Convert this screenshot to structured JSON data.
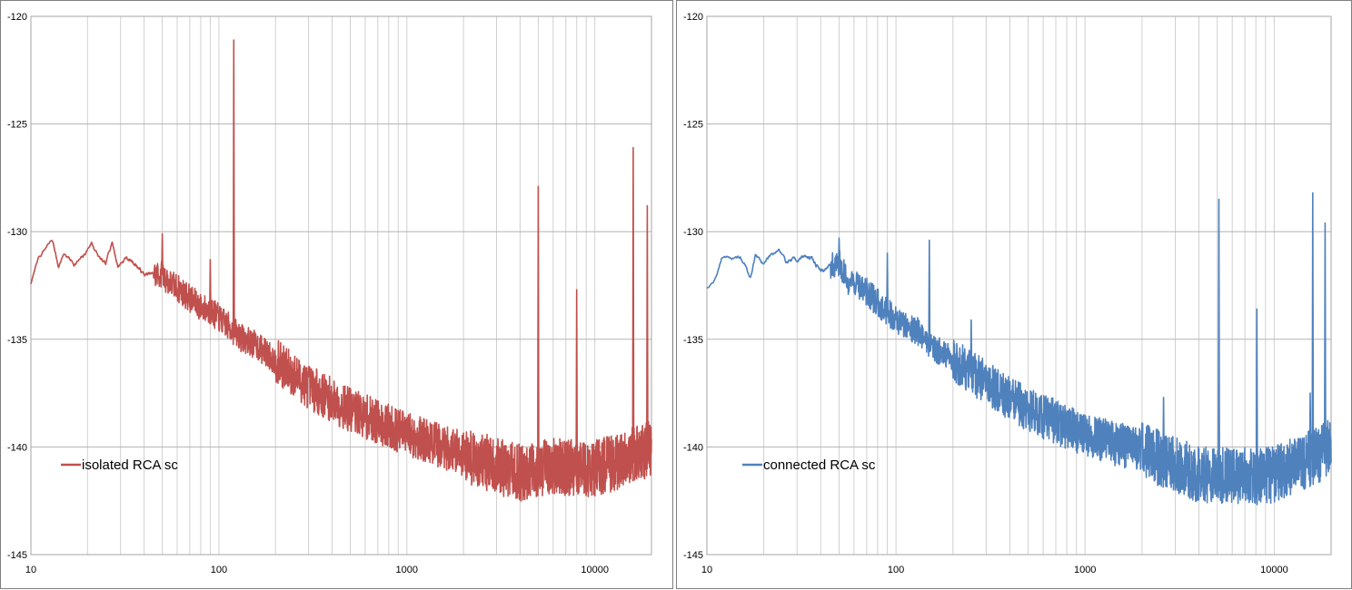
{
  "chart_data": [
    {
      "type": "line",
      "x_scale": "log",
      "xlim": [
        10,
        20000
      ],
      "ylim": [
        -145,
        -120
      ],
      "y_ticks": [
        -120,
        -125,
        -130,
        -135,
        -140,
        -145
      ],
      "x_ticks": [
        10,
        100,
        1000,
        10000
      ],
      "grid": true,
      "legend_position": "bottom-left",
      "series": [
        {
          "name": "isolated RCA sc",
          "color": "#c0504d",
          "noise_amplitude": 0.55,
          "trend": [
            [
              10,
              -132.4
            ],
            [
              11,
              -131.2
            ],
            [
              12,
              -130.8
            ],
            [
              13,
              -130.4
            ],
            [
              14,
              -131.6
            ],
            [
              15,
              -131.0
            ],
            [
              17,
              -131.5
            ],
            [
              19,
              -131.2
            ],
            [
              21,
              -130.5
            ],
            [
              23,
              -131.2
            ],
            [
              25,
              -131.6
            ],
            [
              27,
              -130.4
            ],
            [
              29,
              -131.6
            ],
            [
              32,
              -131.2
            ],
            [
              36,
              -131.5
            ],
            [
              40,
              -132.0
            ],
            [
              45,
              -132.0
            ],
            [
              50,
              -132.0
            ],
            [
              55,
              -132.4
            ],
            [
              60,
              -132.6
            ],
            [
              70,
              -133.1
            ],
            [
              80,
              -133.5
            ],
            [
              90,
              -133.7
            ],
            [
              100,
              -134.0
            ],
            [
              130,
              -134.9
            ],
            [
              160,
              -135.3
            ],
            [
              200,
              -136.0
            ],
            [
              300,
              -137.2
            ],
            [
              500,
              -138.3
            ],
            [
              1000,
              -139.4
            ],
            [
              2000,
              -140.3
            ],
            [
              3000,
              -140.9
            ],
            [
              4000,
              -141.2
            ],
            [
              6000,
              -140.9
            ],
            [
              8000,
              -141.0
            ],
            [
              10000,
              -141.0
            ],
            [
              13000,
              -140.7
            ],
            [
              16000,
              -140.3
            ],
            [
              20000,
              -140.1
            ]
          ],
          "spikes": [
            [
              50,
              -130.1
            ],
            [
              90,
              -131.3
            ],
            [
              120,
              -121.1
            ],
            [
              5000,
              -127.9
            ],
            [
              8000,
              -132.7
            ],
            [
              16000,
              -126.1
            ],
            [
              19000,
              -128.8
            ]
          ]
        },
        {
          "name": "connected RCA sc",
          "color": "#4f81bd",
          "noise_amplitude": 0.55,
          "trend": [
            [
              10,
              -132.6
            ],
            [
              11,
              -132.2
            ],
            [
              12,
              -131.2
            ],
            [
              13,
              -131.1
            ],
            [
              14,
              -131.3
            ],
            [
              15,
              -131.2
            ],
            [
              16,
              -131.6
            ],
            [
              17,
              -132.2
            ],
            [
              18,
              -131.1
            ],
            [
              20,
              -131.5
            ],
            [
              22,
              -131.0
            ],
            [
              24,
              -130.8
            ],
            [
              26,
              -131.4
            ],
            [
              28,
              -131.3
            ],
            [
              30,
              -131.3
            ],
            [
              33,
              -131.1
            ],
            [
              36,
              -131.3
            ],
            [
              40,
              -131.8
            ],
            [
              45,
              -131.6
            ],
            [
              50,
              -131.4
            ],
            [
              55,
              -132.3
            ],
            [
              60,
              -132.3
            ],
            [
              70,
              -132.8
            ],
            [
              80,
              -133.3
            ],
            [
              90,
              -133.7
            ],
            [
              100,
              -134.1
            ],
            [
              130,
              -134.6
            ],
            [
              160,
              -135.4
            ],
            [
              200,
              -136.0
            ],
            [
              300,
              -137.0
            ],
            [
              500,
              -138.3
            ],
            [
              1000,
              -139.4
            ],
            [
              2000,
              -140.2
            ],
            [
              3000,
              -140.8
            ],
            [
              4000,
              -141.3
            ],
            [
              6000,
              -141.3
            ],
            [
              8000,
              -141.4
            ],
            [
              10000,
              -141.3
            ],
            [
              13000,
              -140.8
            ],
            [
              16000,
              -140.5
            ],
            [
              20000,
              -140.0
            ]
          ],
          "spikes": [
            [
              50,
              -130.3
            ],
            [
              90,
              -131.0
            ],
            [
              150,
              -130.4
            ],
            [
              250,
              -134.1
            ],
            [
              2600,
              -137.7
            ],
            [
              5100,
              -128.5
            ],
            [
              8100,
              -133.6
            ],
            [
              15500,
              -137.5
            ],
            [
              16000,
              -128.2
            ],
            [
              18600,
              -129.6
            ]
          ]
        }
      ]
    }
  ]
}
